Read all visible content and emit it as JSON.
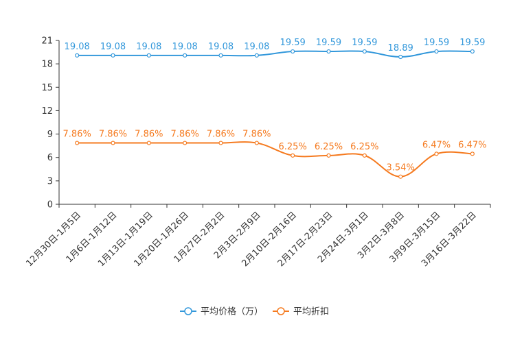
{
  "chart_data": {
    "type": "line",
    "categories": [
      "12月30日-1月5日",
      "1月6日-1月12日",
      "1月13日-1月19日",
      "1月20日-1月26日",
      "1月27日-2月2日",
      "2月3日-2月9日",
      "2月10日-2月16日",
      "2月17日-2月23日",
      "2月24日-3月1日",
      "3月2日-3月8日",
      "3月9日-3月15日",
      "3月16日-3月22日"
    ],
    "series": [
      {
        "name": "平均价格（万）",
        "color": "#3398DB",
        "values": [
          19.08,
          19.08,
          19.08,
          19.08,
          19.08,
          19.08,
          19.59,
          19.59,
          19.59,
          18.89,
          19.59,
          19.59
        ],
        "labels": [
          "19.08",
          "19.08",
          "19.08",
          "19.08",
          "19.08",
          "19.08",
          "19.59",
          "19.59",
          "19.59",
          "18.89",
          "19.59",
          "19.59"
        ]
      },
      {
        "name": "平均折扣",
        "color": "#F57A1F",
        "values": [
          7.86,
          7.86,
          7.86,
          7.86,
          7.86,
          7.86,
          6.25,
          6.25,
          6.25,
          3.54,
          6.47,
          6.47
        ],
        "labels": [
          "7.86%",
          "7.86%",
          "7.86%",
          "7.86%",
          "7.86%",
          "7.86%",
          "6.25%",
          "6.25%",
          "6.25%",
          "3.54%",
          "6.47%",
          "6.47%"
        ]
      }
    ],
    "yticks": [
      "0",
      "3",
      "6",
      "9",
      "12",
      "15",
      "18",
      "21"
    ],
    "ylim": [
      0,
      21
    ],
    "title": "",
    "xlabel": "",
    "ylabel": "",
    "legend_position": "bottom-center"
  }
}
